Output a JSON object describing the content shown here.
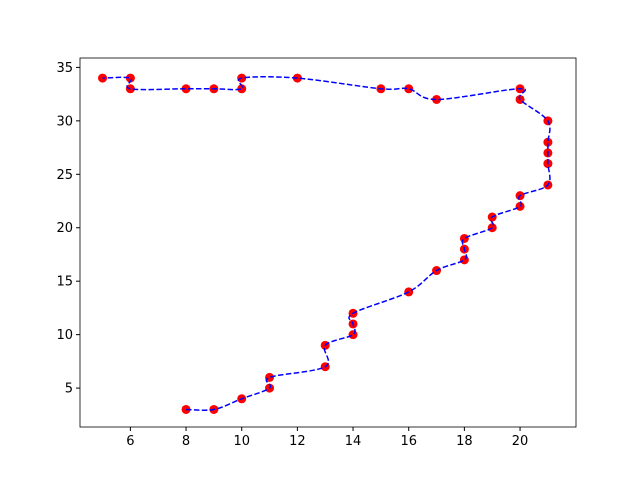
{
  "chart_data": {
    "type": "scatter",
    "x": [
      8,
      9,
      10,
      11,
      11,
      13,
      13,
      14,
      14,
      14,
      16,
      17,
      18,
      18,
      18,
      19,
      19,
      20,
      20,
      21,
      21,
      21,
      21,
      21,
      20,
      20,
      17,
      16,
      15,
      12,
      10,
      10,
      9,
      8,
      6,
      6,
      5
    ],
    "y": [
      3,
      3,
      4,
      5,
      6,
      7,
      9,
      10,
      11,
      12,
      14,
      16,
      17,
      18,
      19,
      20,
      21,
      22,
      23,
      24,
      26,
      27,
      28,
      30,
      32,
      33,
      32,
      33,
      33,
      34,
      34,
      33,
      33,
      33,
      33,
      34,
      34
    ],
    "marker_color": "red",
    "line_color": "blue",
    "xlim": [
      4.19,
      22.01
    ],
    "ylim": [
      1.36,
      35.88
    ],
    "xticks": [
      6,
      8,
      10,
      12,
      14,
      16,
      18,
      20
    ],
    "yticks": [
      5,
      10,
      15,
      20,
      25,
      30,
      35
    ]
  }
}
